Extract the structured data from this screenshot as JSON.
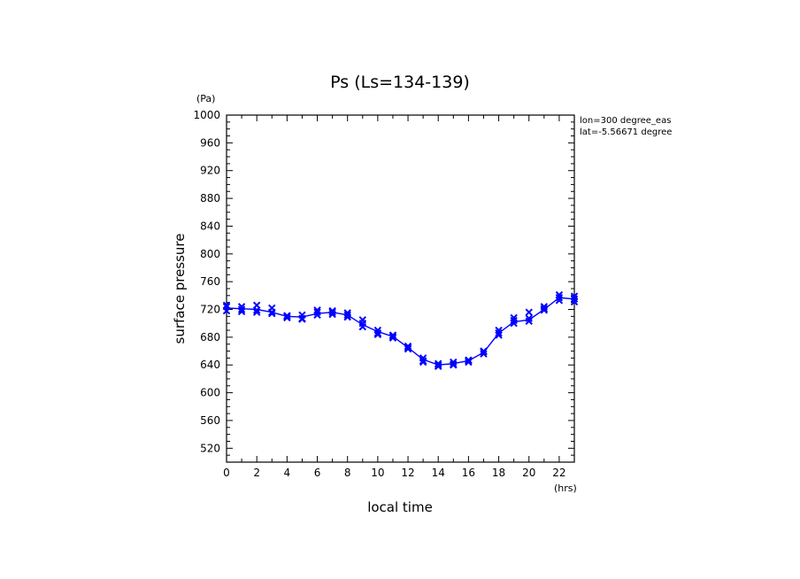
{
  "chart_data": {
    "type": "line",
    "title": "Ps (Ls=134-139)",
    "xlabel": "local time",
    "ylabel": "surface pressure",
    "xunit": "(hrs)",
    "yunit": "(Pa)",
    "xlim": [
      0,
      23
    ],
    "ylim": [
      500,
      1000
    ],
    "xticks": [
      0,
      2,
      4,
      6,
      8,
      10,
      12,
      14,
      16,
      18,
      20,
      22
    ],
    "xticks_minor": [
      1,
      3,
      5,
      7,
      9,
      11,
      13,
      15,
      17,
      19,
      21,
      23
    ],
    "yticks": [
      520,
      560,
      600,
      640,
      680,
      720,
      760,
      800,
      840,
      880,
      920,
      960,
      1000
    ],
    "info": [
      "lon=300 degree_eas",
      "lat=-5.56671 degree"
    ],
    "line_color": "#0000ff",
    "series": [
      {
        "x": [
          0,
          1,
          2,
          3,
          4,
          5,
          6,
          7,
          8,
          9,
          10,
          11,
          12,
          13,
          14,
          15,
          16,
          17,
          18,
          19,
          20,
          21,
          22,
          23
        ],
        "values": [
          722,
          721,
          720,
          716,
          710,
          709,
          714,
          716,
          712,
          698,
          688,
          681,
          665,
          648,
          640,
          642,
          646,
          658,
          686,
          702,
          705,
          720,
          737,
          735
        ],
        "markers": [
          [
            726,
            718,
            724
          ],
          [
            720,
            724,
            717
          ],
          [
            719,
            726,
            716
          ],
          [
            722,
            716,
            714
          ],
          [
            710,
            708,
            711
          ],
          [
            707,
            712,
            706
          ],
          [
            712,
            719,
            716
          ],
          [
            718,
            713,
            716
          ],
          [
            715,
            709,
            712
          ],
          [
            700,
            695,
            705
          ],
          [
            690,
            686,
            684
          ],
          [
            683,
            679,
            681
          ],
          [
            667,
            663,
            665
          ],
          [
            650,
            646,
            644
          ],
          [
            642,
            638,
            640
          ],
          [
            644,
            640,
            641
          ],
          [
            647,
            644,
            646
          ],
          [
            660,
            656,
            659
          ],
          [
            690,
            683,
            686
          ],
          [
            700,
            708,
            704
          ],
          [
            703,
            707,
            716
          ],
          [
            719,
            724,
            721
          ],
          [
            741,
            733,
            737
          ],
          [
            739,
            731,
            735
          ]
        ]
      }
    ]
  }
}
